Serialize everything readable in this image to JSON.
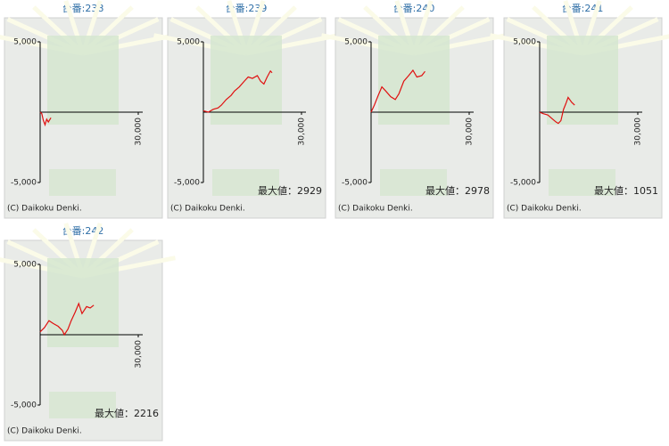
{
  "chart_data": [
    {
      "type": "line",
      "title": "台番:238",
      "x": [
        0,
        500,
        1000,
        1500,
        2000,
        2500,
        3300
      ],
      "series": [
        {
          "color": "#e01010",
          "values": [
            0,
            -100,
            -600,
            -900,
            -500,
            -700,
            -400
          ]
        }
      ],
      "xlim": [
        0,
        30000
      ],
      "ylim": [
        -5000,
        5000
      ],
      "xticks": [
        {
          "value": 30000,
          "label": "30,000"
        }
      ],
      "yticks": [
        {
          "value": 5000,
          "label": "5,000"
        },
        {
          "value": -5000,
          "label": "-5,000"
        }
      ],
      "copyright": "(C) Daikoku Denki."
    },
    {
      "type": "line",
      "title": "台番:239",
      "x": [
        0,
        1500,
        3000,
        4500,
        5500,
        7000,
        8500,
        9500,
        11000,
        12500,
        13700,
        15000,
        16500,
        17500,
        18500,
        19500,
        20500,
        21000
      ],
      "series": [
        {
          "color": "#e01010",
          "values": [
            100,
            0,
            200,
            300,
            500,
            900,
            1200,
            1500,
            1800,
            2200,
            2500,
            2400,
            2600,
            2200,
            2000,
            2500,
            2929,
            2800
          ]
        }
      ],
      "xlim": [
        0,
        30000
      ],
      "ylim": [
        -5000,
        5000
      ],
      "xticks": [
        {
          "value": 30000,
          "label": "30,000"
        }
      ],
      "yticks": [
        {
          "value": 5000,
          "label": "5,000"
        },
        {
          "value": -5000,
          "label": "-5,000"
        }
      ],
      "annotation": "最大値：2929",
      "copyright": "(C) Daikoku Denki."
    },
    {
      "type": "line",
      "title": "台番:240",
      "x": [
        0,
        1000,
        2200,
        3300,
        4500,
        6000,
        7400,
        8500,
        10000,
        11500,
        12800,
        14000,
        15500,
        16500
      ],
      "series": [
        {
          "color": "#e01010",
          "values": [
            0,
            500,
            1200,
            1800,
            1500,
            1100,
            900,
            1300,
            2200,
            2600,
            2978,
            2500,
            2600,
            2900
          ]
        }
      ],
      "xlim": [
        0,
        30000
      ],
      "ylim": [
        -5000,
        5000
      ],
      "xticks": [
        {
          "value": 30000,
          "label": "30,000"
        }
      ],
      "yticks": [
        {
          "value": 5000,
          "label": "5,000"
        },
        {
          "value": -5000,
          "label": "-5,000"
        }
      ],
      "annotation": "最大値：2978",
      "copyright": "(C) Daikoku Denki."
    },
    {
      "type": "line",
      "title": "台番:241",
      "x": [
        0,
        1000,
        2500,
        4000,
        5000,
        5700,
        6500,
        7300,
        8000,
        8700,
        9800,
        10700
      ],
      "series": [
        {
          "color": "#e01010",
          "values": [
            0,
            -100,
            -200,
            -500,
            -700,
            -800,
            -600,
            200,
            600,
            1051,
            700,
            500
          ]
        }
      ],
      "xlim": [
        0,
        30000
      ],
      "ylim": [
        -5000,
        5000
      ],
      "xticks": [
        {
          "value": 30000,
          "label": "30,000"
        }
      ],
      "yticks": [
        {
          "value": 5000,
          "label": "5,000"
        },
        {
          "value": -5000,
          "label": "-5,000"
        }
      ],
      "annotation": "最大値：1051",
      "copyright": "(C) Daikoku Denki."
    },
    {
      "type": "line",
      "title": "台番:242",
      "x": [
        0,
        1300,
        2700,
        4000,
        5500,
        6800,
        7400,
        8500,
        9500,
        10700,
        11800,
        12800,
        14200,
        15300,
        16400
      ],
      "series": [
        {
          "color": "#e01010",
          "values": [
            200,
            500,
            1000,
            800,
            600,
            300,
            0,
            400,
            1000,
            1600,
            2216,
            1500,
            2000,
            1900,
            2100
          ]
        }
      ],
      "xlim": [
        0,
        30000
      ],
      "ylim": [
        -5000,
        5000
      ],
      "xticks": [
        {
          "value": 30000,
          "label": "30,000"
        }
      ],
      "yticks": [
        {
          "value": 5000,
          "label": "5,000"
        },
        {
          "value": -5000,
          "label": "-5,000"
        }
      ],
      "annotation": "最大値：2216",
      "copyright": "(C) Daikoku Denki."
    }
  ]
}
